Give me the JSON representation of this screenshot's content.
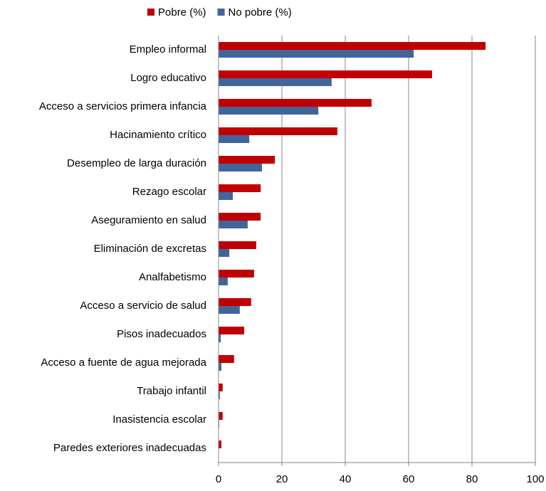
{
  "chart_data": {
    "type": "hbar",
    "categories": [
      "Empleo informal",
      "Logro educativo",
      "Acceso a servicios primera infancia",
      "Hacinamiento crítico",
      "Desempleo de larga duración",
      "Rezago escolar",
      "Aseguramiento en salud",
      "Eliminación de excretas",
      "Analfabetismo",
      "Acceso a servicio de salud",
      "Pisos inadecuados",
      "Acceso a fuente de agua mejorada",
      "Trabajo infantil",
      "Inasistencia escolar",
      "Paredes exteriores inadecuadas"
    ],
    "series": [
      {
        "name": "Pobre (%)",
        "color": "#c00000",
        "values": [
          84.3,
          67.4,
          48.3,
          37.5,
          17.8,
          13.3,
          13.3,
          11.9,
          11.2,
          10.3,
          8.1,
          4.9,
          1.3,
          1.3,
          0.9
        ]
      },
      {
        "name": "No pobre (%)",
        "color": "#41659a",
        "values": [
          61.6,
          35.7,
          31.5,
          9.7,
          13.7,
          4.5,
          9.2,
          3.4,
          2.9,
          6.7,
          0.7,
          0.9,
          0.4,
          0.2,
          0
        ]
      }
    ],
    "xlim": [
      0,
      100
    ],
    "xticks": [
      0,
      20,
      40,
      60,
      80,
      100
    ],
    "grid": true,
    "legend": "top"
  }
}
